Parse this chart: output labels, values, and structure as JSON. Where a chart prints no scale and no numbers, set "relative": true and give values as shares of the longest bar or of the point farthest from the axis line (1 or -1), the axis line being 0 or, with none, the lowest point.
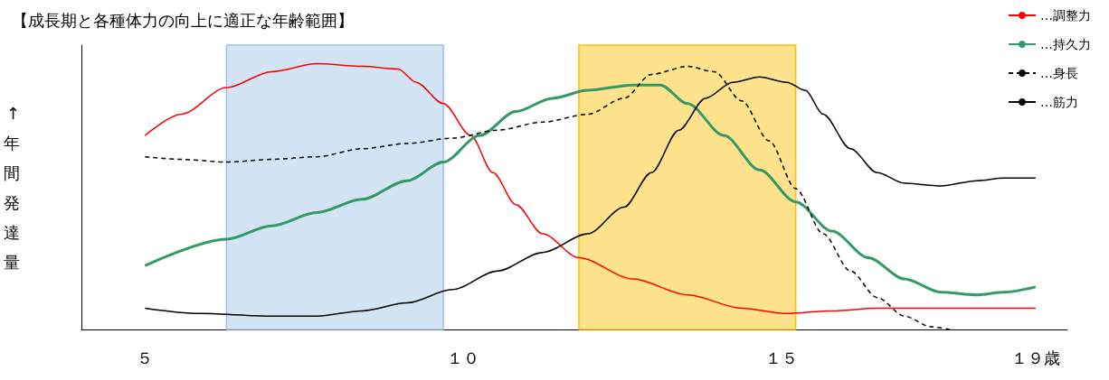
{
  "chart_data": {
    "type": "line",
    "title": "【成長期と各種体力の向上に適正な年齢範囲】",
    "ylabel": "↑年間発達量",
    "relative": true,
    "marker": "none",
    "grid": false,
    "legend": "top right",
    "xlim": [
      4,
      19.5
    ],
    "xticks": [
      {
        "value": 5,
        "label": "５"
      },
      {
        "value": 10,
        "label": "１０"
      },
      {
        "value": 15,
        "label": "１５"
      },
      {
        "value": 19,
        "label": "１９歳"
      }
    ],
    "bands": [
      {
        "axis": "x",
        "from": 6.28,
        "to": 9.69,
        "color": "#9dc3e6"
      },
      {
        "axis": "x",
        "from": 11.82,
        "to": 15.23,
        "color": "#ffc000"
      }
    ],
    "series": [
      {
        "name": "…調整力",
        "color": "#ff0000",
        "line_style": "solid",
        "x": [
          5,
          5.57,
          6.28,
          6.99,
          7.7,
          8.41,
          8.98,
          9.26,
          9.69,
          10.12,
          10.47,
          10.83,
          11.25,
          11.82,
          12.67,
          13.53,
          14.38,
          15.09,
          15.8,
          16.51,
          19
        ],
        "values": [
          0.73,
          0.81,
          0.91,
          0.97,
          1.0,
          0.99,
          0.98,
          0.93,
          0.85,
          0.73,
          0.59,
          0.47,
          0.36,
          0.27,
          0.19,
          0.13,
          0.08,
          0.06,
          0.07,
          0.08,
          0.08
        ]
      },
      {
        "name": "…持久力",
        "color": "#339966",
        "line_style": "solid",
        "x": [
          5,
          6.28,
          6.99,
          7.7,
          8.41,
          9.12,
          9.69,
          10.26,
          10.83,
          11.4,
          11.96,
          12.67,
          13.1,
          13.53,
          14.1,
          14.66,
          15.23,
          15.8,
          16.37,
          16.94,
          17.51,
          18.08,
          18.5,
          19
        ],
        "values": [
          0.24,
          0.34,
          0.39,
          0.44,
          0.49,
          0.56,
          0.63,
          0.73,
          0.82,
          0.87,
          0.9,
          0.92,
          0.92,
          0.85,
          0.73,
          0.6,
          0.48,
          0.37,
          0.27,
          0.19,
          0.14,
          0.13,
          0.14,
          0.16
        ]
      },
      {
        "name": "…身長",
        "color": "#000000",
        "line_style": "dashed",
        "x": [
          5,
          5.57,
          6.28,
          6.99,
          7.7,
          8.41,
          9.12,
          9.83,
          10.54,
          11.25,
          11.96,
          12.53,
          12.96,
          13.53,
          13.95,
          14.38,
          14.81,
          15.23,
          15.66,
          16.09,
          16.51,
          16.94,
          17.36,
          17.65
        ],
        "values": [
          0.65,
          0.64,
          0.63,
          0.64,
          0.65,
          0.68,
          0.7,
          0.72,
          0.75,
          0.78,
          0.81,
          0.87,
          0.96,
          0.99,
          0.97,
          0.86,
          0.71,
          0.53,
          0.36,
          0.22,
          0.12,
          0.05,
          0.01,
          0
        ]
      },
      {
        "name": "…筋力",
        "color": "#000000",
        "line_style": "solid",
        "x": [
          5,
          5.85,
          6.99,
          7.7,
          8.41,
          9.12,
          9.83,
          10.54,
          11.25,
          11.96,
          12.53,
          12.96,
          13.39,
          13.81,
          14.24,
          14.66,
          15.09,
          15.38,
          15.66,
          16.09,
          16.51,
          16.94,
          17.51,
          18.08,
          18.5,
          19
        ],
        "values": [
          0.08,
          0.06,
          0.05,
          0.05,
          0.07,
          0.1,
          0.15,
          0.22,
          0.29,
          0.36,
          0.46,
          0.59,
          0.75,
          0.87,
          0.93,
          0.95,
          0.93,
          0.9,
          0.81,
          0.68,
          0.59,
          0.55,
          0.54,
          0.56,
          0.57,
          0.57
        ]
      }
    ]
  }
}
